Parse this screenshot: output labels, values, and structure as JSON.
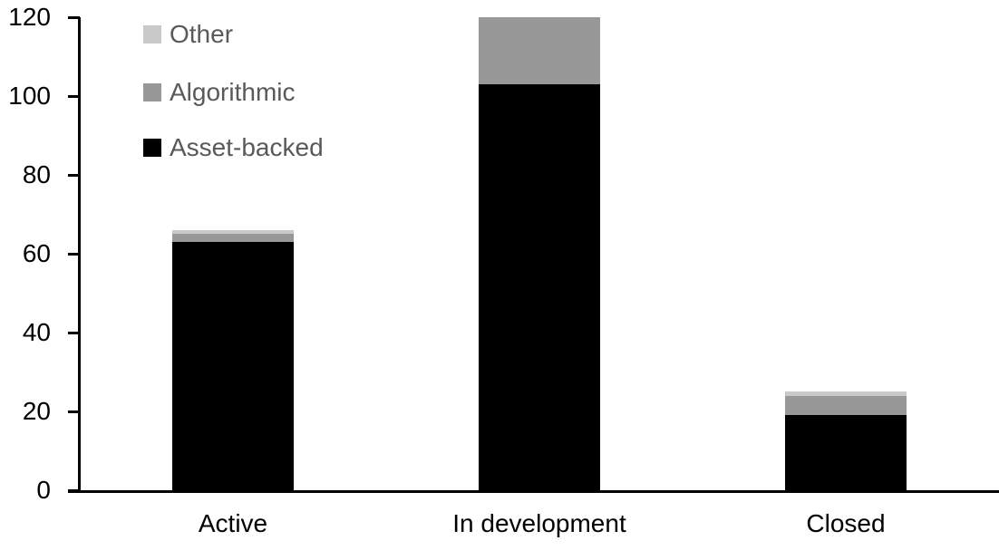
{
  "chart_data": {
    "type": "bar",
    "stacked": true,
    "title": "",
    "xlabel": "",
    "ylabel": "",
    "categories": [
      "Active",
      "In development",
      "Closed"
    ],
    "series": [
      {
        "name": "Asset-backed",
        "color": "#000000",
        "values": [
          63,
          103,
          19
        ]
      },
      {
        "name": "Algorithmic",
        "color": "#989898",
        "values": [
          2,
          17,
          5
        ]
      },
      {
        "name": "Other",
        "color": "#C9C9C9",
        "values": [
          1,
          0,
          1
        ]
      }
    ],
    "totals": [
      66,
      120,
      25
    ],
    "ylim": [
      0,
      120
    ],
    "yticks": [
      0,
      20,
      40,
      60,
      80,
      100,
      120
    ],
    "grid": false,
    "legend": {
      "position": "top-left",
      "display_order": [
        "Other",
        "Algorithmic",
        "Asset-backed"
      ],
      "text_color": "#595959"
    },
    "axis_color": "#000000",
    "tick_label_color": "#000000"
  }
}
